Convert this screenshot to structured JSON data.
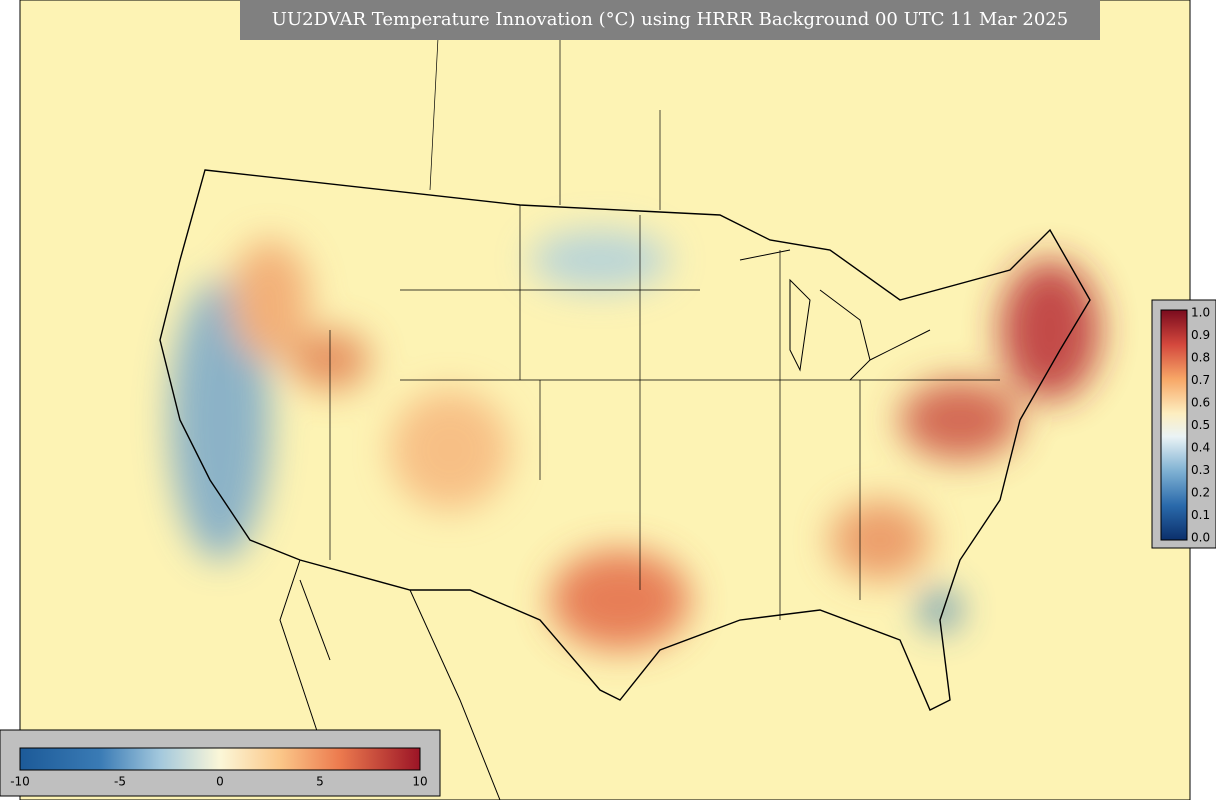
{
  "title": "UU2DVAR Temperature Innovation (°C) using HRRR Background 00 UTC 11 Mar 2025",
  "colorbar_right": {
    "ticks": [
      "1.0",
      "0.9",
      "0.8",
      "0.7",
      "0.6",
      "0.5",
      "0.4",
      "0.3",
      "0.2",
      "0.1",
      "0.0"
    ]
  },
  "colorbar_bottom": {
    "ticks": [
      "-10",
      "-5",
      "0",
      "5",
      "10"
    ]
  }
}
